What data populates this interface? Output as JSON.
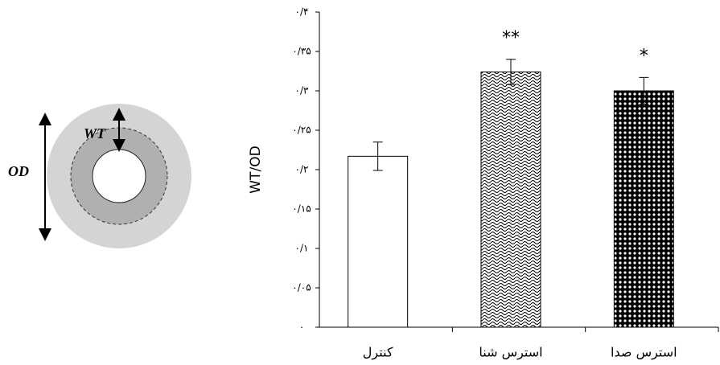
{
  "chart_data": {
    "type": "bar",
    "ylabel": "WT/OD",
    "categories": [
      "کنترل",
      "استرس شنا",
      "استرس صدا"
    ],
    "values": [
      0.217,
      0.324,
      0.3
    ],
    "errors": [
      0.018,
      0.016,
      0.017
    ],
    "fills": [
      "plain",
      "wave",
      "dots"
    ],
    "annotations": [
      {
        "category": "استرس شنا",
        "text": "**"
      },
      {
        "category": "استرس صدا",
        "text": "*"
      }
    ],
    "ylim": [
      0,
      0.4
    ],
    "yticks": [
      {
        "value": 0,
        "label": "۰"
      },
      {
        "value": 0.05,
        "label": "۰/۰۵"
      },
      {
        "value": 0.1,
        "label": "۰/۱"
      },
      {
        "value": 0.15,
        "label": "۰/۱۵"
      },
      {
        "value": 0.2,
        "label": "۰/۲"
      },
      {
        "value": 0.25,
        "label": "۰/۲۵"
      },
      {
        "value": 0.3,
        "label": "۰/۳"
      },
      {
        "value": 0.35,
        "label": "۰/۳۵"
      },
      {
        "value": 0.4,
        "label": "۰/۴"
      }
    ]
  },
  "diagram": {
    "od_label": "OD",
    "wt_label": "WT"
  }
}
